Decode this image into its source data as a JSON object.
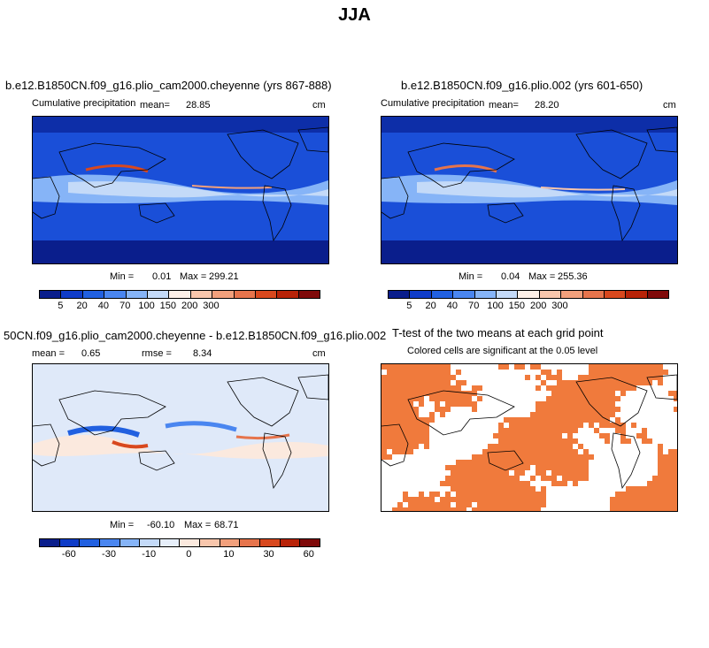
{
  "title": "JJA",
  "panels": [
    {
      "id": "p1",
      "case_title": "b.e12.B1850CN.f09_g16.plio_cam2000.cheyenne (yrs 867-888)",
      "variable": "Cumulative precipitation",
      "stat_label": "mean=",
      "stat_value": "28.85",
      "units": "cm",
      "min_label": "Min =",
      "min_value": "0.01",
      "max_label": "Max =",
      "max_value": "299.21",
      "colorbar_ticks": [
        "5",
        "20",
        "40",
        "70",
        "100",
        "150",
        "200",
        "300"
      ]
    },
    {
      "id": "p2",
      "case_title": "b.e12.B1850CN.f09_g16.plio.002 (yrs 601-650)",
      "variable": "Cumulative precipitation",
      "stat_label": "mean=",
      "stat_value": "28.20",
      "units": "cm",
      "min_label": "Min =",
      "min_value": "0.04",
      "max_label": "Max =",
      "max_value": "255.36",
      "colorbar_ticks": [
        "5",
        "20",
        "40",
        "70",
        "100",
        "150",
        "200",
        "300"
      ]
    },
    {
      "id": "p3",
      "case_title": "50CN.f09_g16.plio_cam2000.cheyenne - b.e12.B1850CN.f09_g16.plio.002",
      "mean_label": "mean =",
      "mean_value": "0.65",
      "rmse_label": "rmse =",
      "rmse_value": "8.34",
      "units": "cm",
      "min_label": "Min =",
      "min_value": "-60.10",
      "max_label": "Max =",
      "max_value": "68.71",
      "colorbar_ticks": [
        "-60",
        "-30",
        "-10",
        "0",
        "10",
        "30",
        "60"
      ]
    },
    {
      "id": "p4",
      "case_title": "T-test of the two means at each grid point",
      "subtitle": "Colored cells are significant at the 0.05 level"
    }
  ],
  "colors": {
    "precip_scale": [
      "#0a1e8c",
      "#0f3cc8",
      "#2160e0",
      "#4a86f0",
      "#86b4f7",
      "#c4daf8",
      "#fdf0e8",
      "#f8c6ac",
      "#f2a07c",
      "#e6744c",
      "#d8481e",
      "#b82308",
      "#7f0a0a"
    ],
    "diff_scale": [
      "#0a1e8c",
      "#0f3cc8",
      "#2160e0",
      "#4a86f0",
      "#86b4f7",
      "#c4daf8",
      "#e6eef9",
      "#fbe9de",
      "#f8c6ac",
      "#f2a07c",
      "#e6744c",
      "#d8481e",
      "#b82308",
      "#7f0a0a"
    ],
    "significance": "#f07a3c"
  }
}
